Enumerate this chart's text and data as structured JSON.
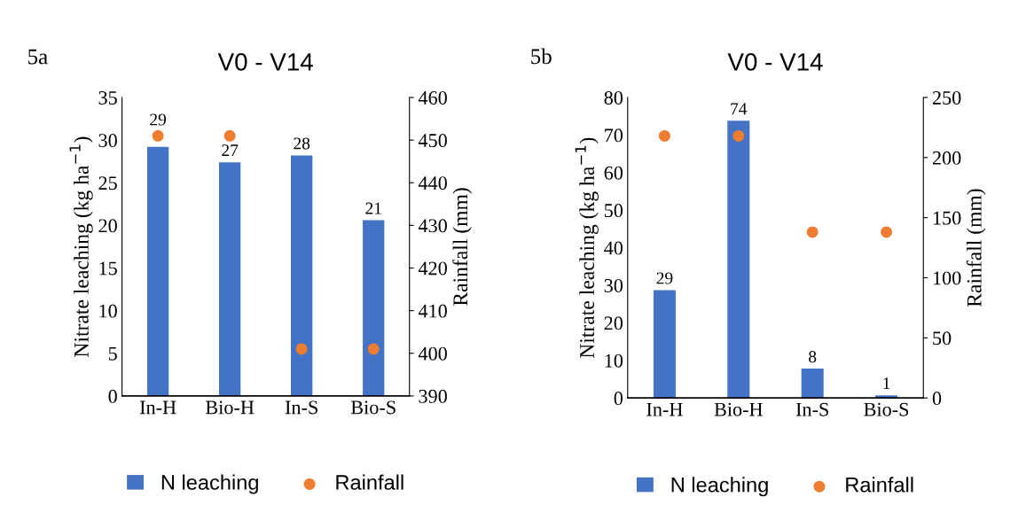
{
  "chart_data": [
    {
      "type": "bar",
      "title": "V0 - V14",
      "categories": [
        "In-H",
        "Bio-H",
        "In-S",
        "Bio-S"
      ],
      "ylabel": "Nitrate leaching (kg ha$^{−1}$)",
      "y2label": "Rainfall (mm)",
      "ylim": [
        0,
        35
      ],
      "yticks": [
        0,
        5,
        10,
        15,
        20,
        25,
        30,
        35
      ],
      "y2lim": [
        390,
        460
      ],
      "y2ticks": [
        390,
        400,
        410,
        420,
        430,
        440,
        450,
        460
      ],
      "legend": "bottom",
      "grid": false,
      "annotations": [
        "5a"
      ],
      "series": [
        {
          "name": "N leaching",
          "type": "bar",
          "color": "#4472c4",
          "values": [
            29.2,
            27.4,
            28.2,
            20.6
          ],
          "value_labels": [
            "29",
            "27",
            "28",
            "21"
          ]
        },
        {
          "name": "Rainfall",
          "type": "scatter",
          "axis": "y2",
          "marker": "circle",
          "color": "#ed7d31",
          "values": [
            451,
            451,
            401,
            401
          ]
        }
      ]
    },
    {
      "type": "bar",
      "title": "V0 - V14",
      "categories": [
        "In-H",
        "Bio-H",
        "In-S",
        "Bio-S"
      ],
      "ylabel": "Nitrate leaching (kg ha$^{−1}$)",
      "y2label": "Rainfall (mm)",
      "ylim": [
        0,
        80
      ],
      "yticks": [
        0,
        10,
        20,
        30,
        40,
        50,
        60,
        70,
        80
      ],
      "y2lim": [
        0,
        250
      ],
      "y2ticks": [
        0,
        50,
        100,
        150,
        200,
        250
      ],
      "legend": "bottom",
      "grid": false,
      "annotations": [
        "5b"
      ],
      "series": [
        {
          "name": "N leaching",
          "type": "bar",
          "color": "#4472c4",
          "values": [
            28.7,
            73.8,
            7.8,
            0.7
          ],
          "value_labels": [
            "29",
            "74",
            "8",
            "1"
          ]
        },
        {
          "name": "Rainfall",
          "type": "scatter",
          "axis": "y2",
          "marker": "circle",
          "color": "#ed7d31",
          "values": [
            218,
            218,
            138,
            138
          ]
        }
      ]
    }
  ]
}
